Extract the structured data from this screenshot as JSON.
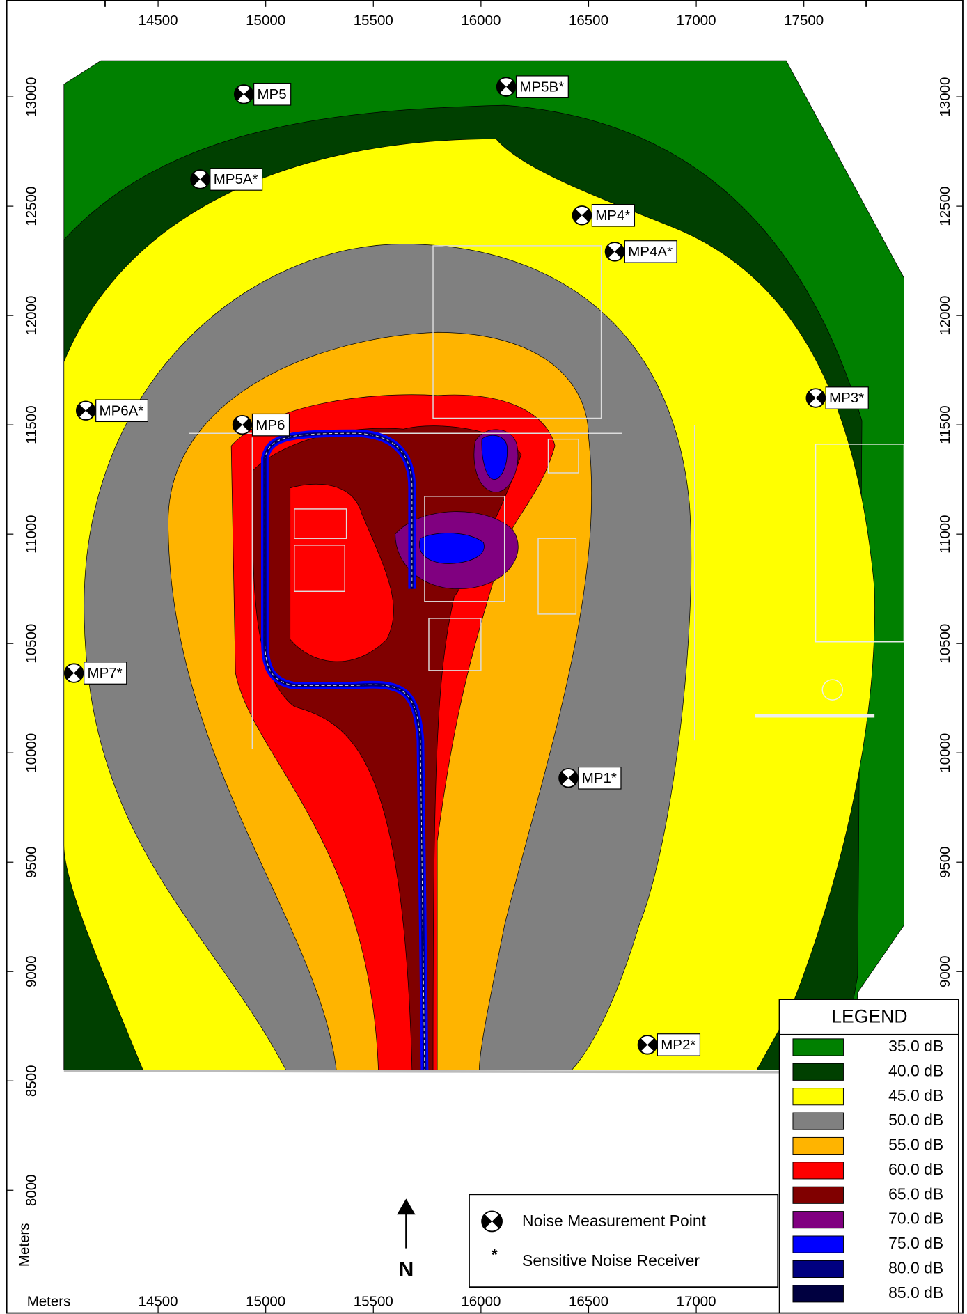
{
  "map": {
    "axis": {
      "top_ticks": [
        14500,
        15000,
        15500,
        16000,
        16500,
        17000,
        17500
      ],
      "bottom_ticks": [
        14500,
        15000,
        15500,
        16000,
        16500,
        17000
      ],
      "left_ticks": [
        8500,
        9000,
        9500,
        10000,
        10500,
        11000,
        11500,
        12000,
        12500,
        13000
      ],
      "left_extra_ticks": [
        8000
      ],
      "right_ticks": [
        9000,
        9500,
        10000,
        10500,
        11000,
        11500,
        12000,
        12500,
        13000
      ],
      "bottom_unit": "Meters",
      "left_unit": "Meters"
    },
    "points": [
      {
        "label": "MP5",
        "x": 14898,
        "y": 13012
      },
      {
        "label": "MP5B*",
        "x": 16117,
        "y": 13046
      },
      {
        "label": "MP5A*",
        "x": 14695,
        "y": 12623
      },
      {
        "label": "MP4*",
        "x": 16469,
        "y": 12458
      },
      {
        "label": "MP4A*",
        "x": 16621,
        "y": 12292
      },
      {
        "label": "MP3*",
        "x": 17555,
        "y": 11623
      },
      {
        "label": "MP6A*",
        "x": 14164,
        "y": 11565
      },
      {
        "label": "MP6",
        "x": 14891,
        "y": 11500
      },
      {
        "label": "MP7*",
        "x": 14109,
        "y": 10365
      },
      {
        "label": "MP1*",
        "x": 16406,
        "y": 9885
      },
      {
        "label": "MP2*",
        "x": 16773,
        "y": 8665
      }
    ],
    "legend": {
      "title": "LEGEND",
      "items": [
        {
          "label": "35.0 dB",
          "value": 35,
          "color": "#008000"
        },
        {
          "label": "40.0 dB",
          "value": 40,
          "color": "#004000"
        },
        {
          "label": "45.0 dB",
          "value": 45,
          "color": "#ffff00"
        },
        {
          "label": "50.0 dB",
          "value": 50,
          "color": "#808080"
        },
        {
          "label": "55.0 dB",
          "value": 55,
          "color": "#ffb400"
        },
        {
          "label": "60.0 dB",
          "value": 60,
          "color": "#ff0000"
        },
        {
          "label": "65.0 dB",
          "value": 65,
          "color": "#800000"
        },
        {
          "label": "70.0 dB",
          "value": 70,
          "color": "#800080"
        },
        {
          "label": "75.0 dB",
          "value": 75,
          "color": "#0000ff"
        },
        {
          "label": "80.0 dB",
          "value": 80,
          "color": "#000080"
        },
        {
          "label": "85.0 dB",
          "value": 85,
          "color": "#000040"
        }
      ]
    },
    "key": {
      "measurement_label": "Noise Measurement Point",
      "receiver_symbol": "*",
      "receiver_label": "Sensitive Noise Receiver"
    },
    "north": "N"
  }
}
